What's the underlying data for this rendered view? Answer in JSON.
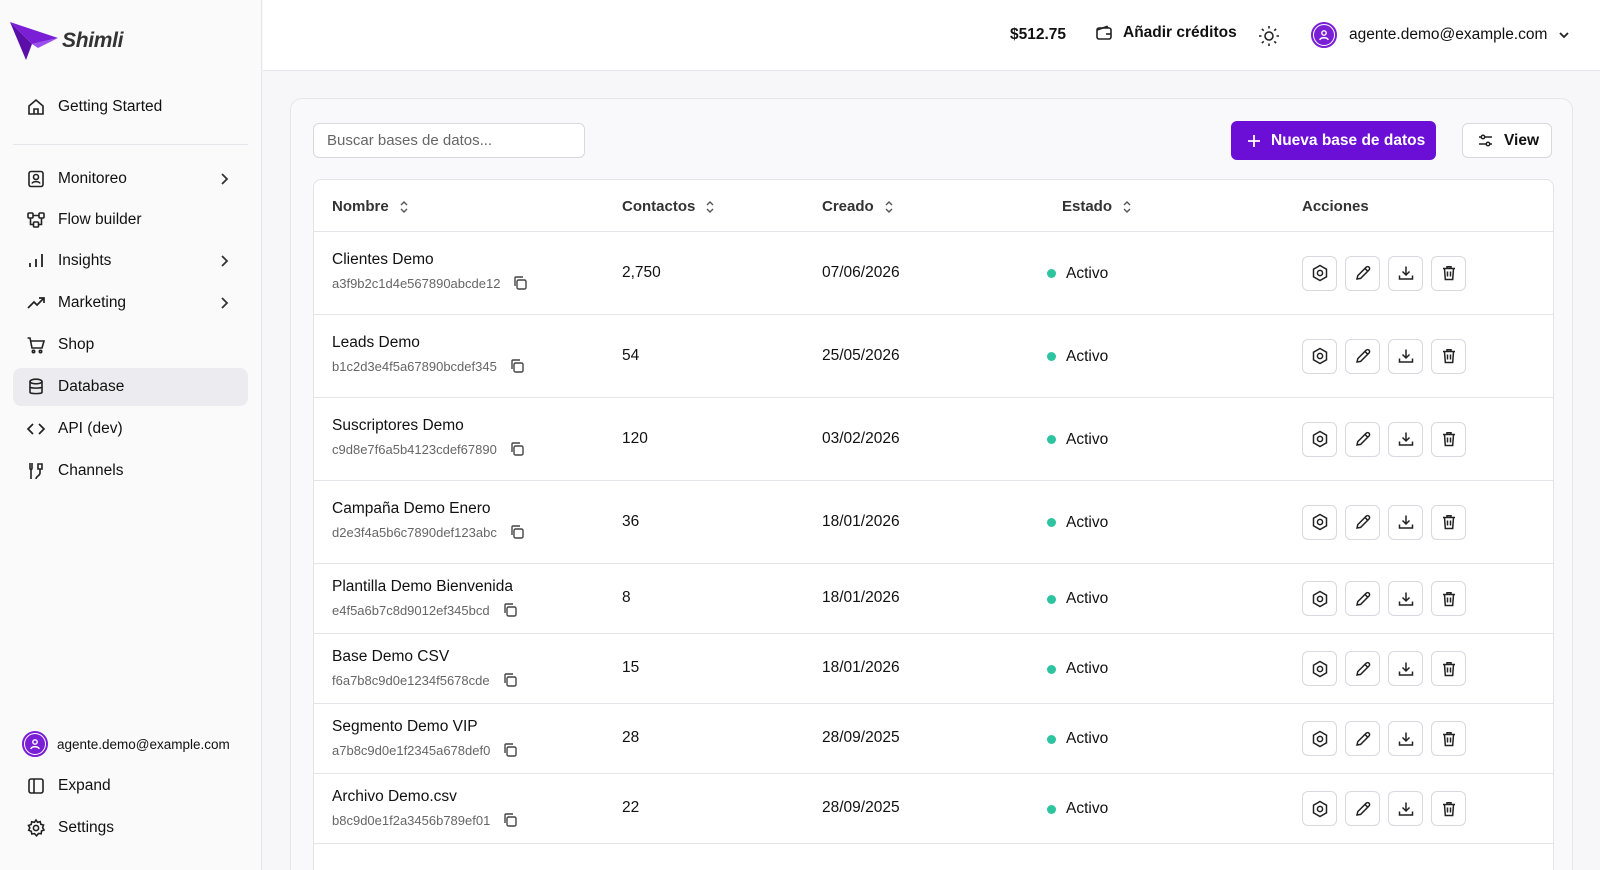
{
  "brand": {
    "name": "Shimli",
    "accent": "#6c0fd6"
  },
  "sidebar": {
    "items": [
      {
        "label": "Getting Started",
        "icon": "home-icon",
        "chevron": false
      },
      {
        "label": "Monitoreo",
        "icon": "user-badge-icon",
        "chevron": true
      },
      {
        "label": "Flow builder",
        "icon": "flow-icon",
        "chevron": false
      },
      {
        "label": "Insights",
        "icon": "bar-chart-icon",
        "chevron": true
      },
      {
        "label": "Marketing",
        "icon": "trending-up-icon",
        "chevron": true
      },
      {
        "label": "Shop",
        "icon": "cart-icon",
        "chevron": false
      },
      {
        "label": "Database",
        "icon": "database-icon",
        "chevron": false,
        "active": true
      },
      {
        "label": "API (dev)",
        "icon": "code-icon",
        "chevron": false
      },
      {
        "label": "Channels",
        "icon": "channels-icon",
        "chevron": false
      }
    ],
    "user_email": "agente.demo@example.com",
    "expand_label": "Expand",
    "settings_label": "Settings"
  },
  "header": {
    "credits": "$512.75",
    "add_credits_label": "Añadir créditos",
    "user_email": "agente.demo@example.com"
  },
  "toolbar": {
    "search_placeholder": "Buscar bases de datos...",
    "new_button_label": "Nueva base de datos",
    "view_button_label": "View"
  },
  "table": {
    "columns": [
      "Nombre",
      "Contactos",
      "Creado",
      "Estado",
      "Acciones"
    ],
    "rows": [
      {
        "name": "Clientes Demo",
        "id": "a3f9b2c1d4e567890abcde12",
        "contacts": "2,750",
        "created": "07/06/2026",
        "status": "Activo"
      },
      {
        "name": "Leads Demo",
        "id": "b1c2d3e4f5a67890bcdef345",
        "contacts": "54",
        "created": "25/05/2026",
        "status": "Activo"
      },
      {
        "name": "Suscriptores Demo",
        "id": "c9d8e7f6a5b4123cdef67890",
        "contacts": "120",
        "created": "03/02/2026",
        "status": "Activo"
      },
      {
        "name": "Campaña Demo Enero",
        "id": "d2e3f4a5b6c7890def123abc",
        "contacts": "36",
        "created": "18/01/2026",
        "status": "Activo"
      },
      {
        "name": "Plantilla Demo Bienvenida",
        "id": "e4f5a6b7c8d9012ef345bcd",
        "contacts": "8",
        "created": "18/01/2026",
        "status": "Activo"
      },
      {
        "name": "Base Demo CSV",
        "id": "f6a7b8c9d0e1234f5678cde",
        "contacts": "15",
        "created": "18/01/2026",
        "status": "Activo"
      },
      {
        "name": "Segmento Demo VIP",
        "id": "a7b8c9d0e1f2345a678def0",
        "contacts": "28",
        "created": "28/09/2025",
        "status": "Activo"
      },
      {
        "name": "Archivo Demo.csv",
        "id": "b8c9d0e1f2a3456b789ef01",
        "contacts": "22",
        "created": "28/09/2025",
        "status": "Activo"
      }
    ]
  }
}
